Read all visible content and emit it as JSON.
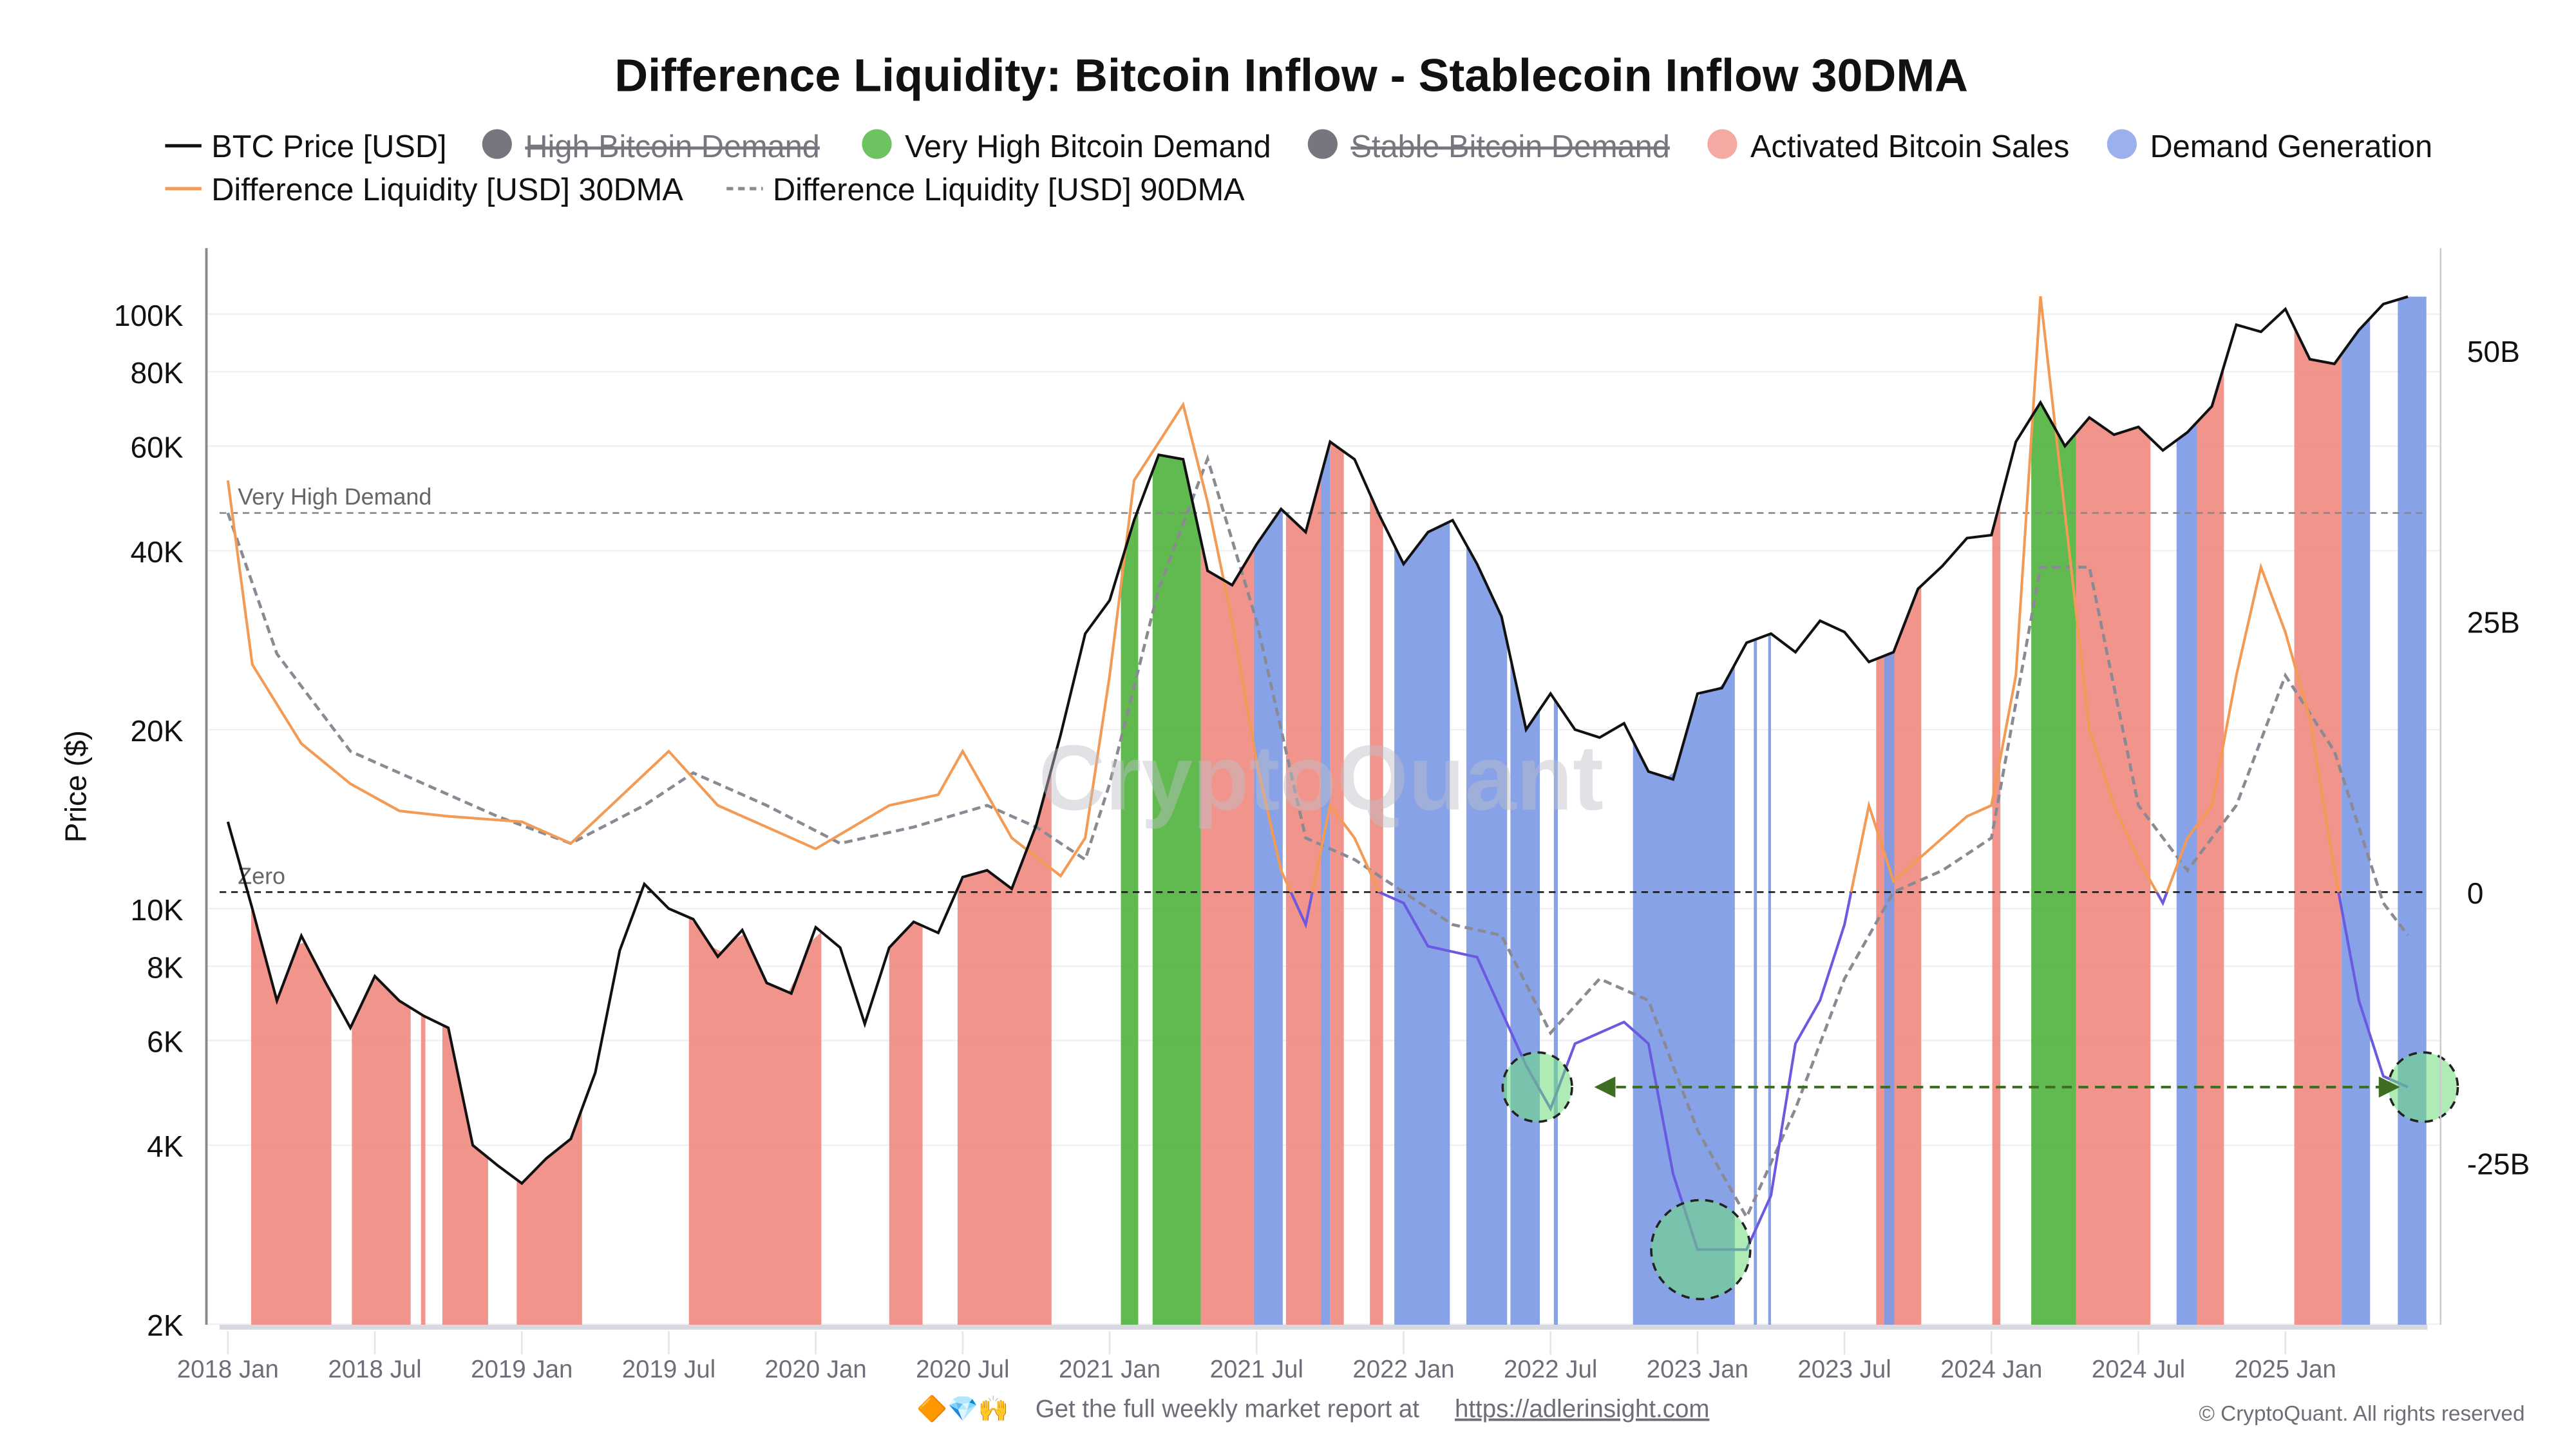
{
  "chart_data": {
    "type": "line",
    "title": "Difference Liquidity: Bitcoin Inflow - Stablecoin Inflow 30DMA",
    "ylabel_left": "Price ($)",
    "y_left_scale": "log",
    "y_left_range": [
      2000,
      140000
    ],
    "y_right_range": [
      -40,
      60
    ],
    "y_right_unit": "B USD",
    "x_range": [
      "2018-01-01",
      "2025-06-24"
    ],
    "grid": true,
    "legend_placement": "top-left",
    "x_ticks": [
      "2018 Jan",
      "2018 Jul",
      "2019 Jan",
      "2019 Jul",
      "2020 Jan",
      "2020 Jul",
      "2021 Jan",
      "2021 Jul",
      "2022 Jan",
      "2022 Jul",
      "2023 Jan",
      "2023 Jul",
      "2024 Jan",
      "2024 Jul",
      "2025 Jan"
    ],
    "x_tick_dates": [
      "2018-01-01",
      "2018-07-01",
      "2019-01-01",
      "2019-07-01",
      "2020-01-01",
      "2020-07-01",
      "2021-01-01",
      "2021-07-01",
      "2022-01-01",
      "2022-07-01",
      "2023-01-01",
      "2023-07-01",
      "2024-01-01",
      "2024-07-01",
      "2025-01-01"
    ],
    "y_left_ticks": [
      {
        "label": "100K",
        "value": 100000
      },
      {
        "label": "80K",
        "value": 80000
      },
      {
        "label": "60K",
        "value": 60000
      },
      {
        "label": "40K",
        "value": 40000
      },
      {
        "label": "20K",
        "value": 20000
      },
      {
        "label": "10K",
        "value": 10000
      },
      {
        "label": "8K",
        "value": 8000
      },
      {
        "label": "6K",
        "value": 6000
      },
      {
        "label": "4K",
        "value": 4000
      },
      {
        "label": "2K",
        "value": 2000
      }
    ],
    "y_right_ticks": [
      {
        "label": "50B",
        "value": 50
      },
      {
        "label": "25B",
        "value": 25
      },
      {
        "label": "0",
        "value": 0
      },
      {
        "label": "-25B",
        "value": -25
      }
    ],
    "reference_lines": [
      {
        "label": "Very High Demand",
        "value": 35
      },
      {
        "label": "Zero",
        "value": 0
      }
    ],
    "legend": [
      {
        "label": "BTC Price [USD]",
        "type": "line",
        "color": "#111111",
        "enabled": true
      },
      {
        "label": "High Bitcoin Demand",
        "type": "dot",
        "color": "#77767f",
        "enabled": false
      },
      {
        "label": "Very High Bitcoin Demand",
        "type": "dot",
        "color": "#6cc35f",
        "enabled": true
      },
      {
        "label": "Stable Bitcoin Demand",
        "type": "dot",
        "color": "#77767f",
        "enabled": false
      },
      {
        "label": "Activated Bitcoin Sales",
        "type": "dot",
        "color": "#f4aaa3",
        "enabled": true
      },
      {
        "label": "Demand Generation",
        "type": "dot",
        "color": "#9cb0ec",
        "enabled": true
      },
      {
        "label": "Difference Liquidity [USD] 30DMA",
        "type": "line",
        "color": "#f39a55",
        "enabled": true
      },
      {
        "label": "Difference Liquidity [USD] 90DMA",
        "type": "dashed",
        "color": "#8a8a94",
        "enabled": true
      }
    ],
    "colors": {
      "btc": "#111111",
      "liq30_pos": "#f39a55",
      "liq30_neg": "#6a5ae0",
      "liq90": "#8a8a94",
      "sales": "#f0897f",
      "very_high": "#4fb33c",
      "demand_gen": "#7b98e6",
      "annotation": "#3d6e22"
    },
    "btc_price": {
      "dates": [
        "2018-01",
        "2018-02",
        "2018-03",
        "2018-04",
        "2018-05",
        "2018-06",
        "2018-07",
        "2018-08",
        "2018-09",
        "2018-10",
        "2018-11",
        "2018-12",
        "2019-01",
        "2019-02",
        "2019-03",
        "2019-04",
        "2019-05",
        "2019-06",
        "2019-07",
        "2019-08",
        "2019-09",
        "2019-10",
        "2019-11",
        "2019-12",
        "2020-01",
        "2020-02",
        "2020-03",
        "2020-04",
        "2020-05",
        "2020-06",
        "2020-07",
        "2020-08",
        "2020-09",
        "2020-10",
        "2020-11",
        "2020-12",
        "2021-01",
        "2021-02",
        "2021-03",
        "2021-04",
        "2021-05",
        "2021-06",
        "2021-07",
        "2021-08",
        "2021-09",
        "2021-10",
        "2021-11",
        "2021-12",
        "2022-01",
        "2022-02",
        "2022-03",
        "2022-04",
        "2022-05",
        "2022-06",
        "2022-07",
        "2022-08",
        "2022-09",
        "2022-10",
        "2022-11",
        "2022-12",
        "2023-01",
        "2023-02",
        "2023-03",
        "2023-04",
        "2023-05",
        "2023-06",
        "2023-07",
        "2023-08",
        "2023-09",
        "2023-10",
        "2023-11",
        "2023-12",
        "2024-01",
        "2024-02",
        "2024-03",
        "2024-04",
        "2024-05",
        "2024-06",
        "2024-07",
        "2024-08",
        "2024-09",
        "2024-10",
        "2024-11",
        "2024-12",
        "2025-01",
        "2025-02",
        "2025-03",
        "2025-04",
        "2025-05",
        "2025-06"
      ],
      "values": [
        14000,
        10000,
        7000,
        9000,
        7500,
        6300,
        7700,
        7000,
        6600,
        6300,
        4000,
        3700,
        3450,
        3800,
        4100,
        5300,
        8500,
        11000,
        10000,
        9600,
        8300,
        9200,
        7500,
        7200,
        9300,
        8600,
        6400,
        8600,
        9500,
        9100,
        11300,
        11600,
        10800,
        13800,
        19600,
        29000,
        33000,
        45000,
        58000,
        57000,
        37000,
        35000,
        41000,
        47000,
        43000,
        61000,
        57000,
        46000,
        38000,
        43000,
        45000,
        38000,
        31000,
        20000,
        23000,
        20000,
        19400,
        20500,
        17000,
        16500,
        23000,
        23500,
        28000,
        29000,
        27000,
        30500,
        29200,
        26000,
        27000,
        34500,
        37700,
        42000,
        42500,
        61000,
        71000,
        60000,
        67000,
        62700,
        64600,
        59000,
        63300,
        70000,
        96000,
        93400,
        102000,
        84000,
        82500,
        94000,
        104000,
        107000
      ]
    },
    "liquidity_30dma": {
      "dates": [
        "2018-01",
        "2018-02",
        "2018-04",
        "2018-06",
        "2018-08",
        "2018-10",
        "2019-01",
        "2019-03",
        "2019-07",
        "2019-09",
        "2019-11",
        "2020-01",
        "2020-04",
        "2020-06",
        "2020-07",
        "2020-09",
        "2020-11",
        "2020-12",
        "2021-01",
        "2021-02",
        "2021-04",
        "2021-05",
        "2021-06",
        "2021-07",
        "2021-08",
        "2021-09",
        "2021-10",
        "2021-11",
        "2021-12",
        "2022-01",
        "2022-02",
        "2022-04",
        "2022-06",
        "2022-07",
        "2022-08",
        "2022-10",
        "2022-11",
        "2022-12",
        "2023-01",
        "2023-03",
        "2023-04",
        "2023-05",
        "2023-06",
        "2023-07",
        "2023-08",
        "2023-09",
        "2023-10",
        "2023-12",
        "2024-01",
        "2024-02",
        "2024-03",
        "2024-04",
        "2024-05",
        "2024-06",
        "2024-07",
        "2024-08",
        "2024-09",
        "2024-10",
        "2024-11",
        "2024-12",
        "2025-01",
        "2025-02",
        "2025-03",
        "2025-04",
        "2025-05",
        "2025-06"
      ],
      "values": [
        38,
        21,
        13.7,
        10,
        7.5,
        7,
        6.5,
        4.5,
        13,
        8,
        6,
        4,
        8,
        9,
        13,
        5,
        1.5,
        5,
        20,
        38,
        45,
        36,
        25,
        12,
        2,
        -3,
        8,
        5,
        0,
        -1,
        -5,
        -6,
        -16,
        -20,
        -14,
        -12,
        -14,
        -26,
        -33,
        -33,
        -28,
        -14,
        -10,
        -3,
        8,
        1,
        3,
        7,
        8,
        20,
        55,
        35,
        15,
        8,
        3,
        -1,
        5,
        8,
        20,
        30,
        24,
        16,
        2,
        -10,
        -17,
        -18
      ]
    },
    "liquidity_90dma": {
      "dates": [
        "2018-01",
        "2018-03",
        "2018-06",
        "2018-09",
        "2018-12",
        "2019-03",
        "2019-06",
        "2019-08",
        "2019-11",
        "2020-02",
        "2020-05",
        "2020-08",
        "2020-10",
        "2020-12",
        "2021-01",
        "2021-03",
        "2021-05",
        "2021-07",
        "2021-09",
        "2021-11",
        "2022-01",
        "2022-03",
        "2022-05",
        "2022-07",
        "2022-09",
        "2022-11",
        "2023-01",
        "2023-03",
        "2023-05",
        "2023-07",
        "2023-09",
        "2023-11",
        "2024-01",
        "2024-03",
        "2024-05",
        "2024-07",
        "2024-09",
        "2024-11",
        "2025-01",
        "2025-03",
        "2025-05",
        "2025-06"
      ],
      "values": [
        35,
        22,
        13,
        10,
        7,
        4.5,
        8,
        11,
        8,
        4.5,
        6,
        8,
        6,
        3,
        10,
        28,
        40,
        25,
        5,
        3,
        0,
        -3,
        -4,
        -13,
        -8,
        -10,
        -22,
        -30,
        -20,
        -8,
        0,
        2,
        5,
        30,
        30,
        8,
        2,
        8,
        20,
        13,
        -1,
        -4
      ]
    },
    "regimes": [
      {
        "type": "sales",
        "start": "2018-01-30",
        "end": "2018-05-08"
      },
      {
        "type": "sales",
        "start": "2018-06-03",
        "end": "2018-08-15"
      },
      {
        "type": "sales",
        "start": "2018-08-28",
        "end": "2018-09-03"
      },
      {
        "type": "sales",
        "start": "2018-09-24",
        "end": "2018-11-20"
      },
      {
        "type": "sales",
        "start": "2018-12-25",
        "end": "2019-03-15"
      },
      {
        "type": "sales",
        "start": "2019-07-26",
        "end": "2020-01-08"
      },
      {
        "type": "sales",
        "start": "2020-04-01",
        "end": "2020-05-12"
      },
      {
        "type": "sales",
        "start": "2020-06-25",
        "end": "2020-10-20"
      },
      {
        "type": "very_high",
        "start": "2021-01-15",
        "end": "2021-02-06"
      },
      {
        "type": "very_high",
        "start": "2021-02-24",
        "end": "2021-04-23"
      },
      {
        "type": "sales",
        "start": "2021-04-23",
        "end": "2021-06-28"
      },
      {
        "type": "demand_gen",
        "start": "2021-06-28",
        "end": "2021-08-03"
      },
      {
        "type": "sales",
        "start": "2021-08-07",
        "end": "2021-09-20"
      },
      {
        "type": "demand_gen",
        "start": "2021-09-20",
        "end": "2021-10-01"
      },
      {
        "type": "sales",
        "start": "2021-10-01",
        "end": "2021-10-18"
      },
      {
        "type": "sales",
        "start": "2021-11-20",
        "end": "2021-12-06"
      },
      {
        "type": "demand_gen",
        "start": "2021-12-20",
        "end": "2022-02-28"
      },
      {
        "type": "demand_gen",
        "start": "2022-03-18",
        "end": "2022-05-08"
      },
      {
        "type": "demand_gen",
        "start": "2022-05-12",
        "end": "2022-06-18"
      },
      {
        "type": "demand_gen",
        "start": "2022-07-05",
        "end": "2022-07-10"
      },
      {
        "type": "demand_gen",
        "start": "2022-10-12",
        "end": "2023-02-17"
      },
      {
        "type": "demand_gen",
        "start": "2023-03-10",
        "end": "2023-03-14"
      },
      {
        "type": "demand_gen",
        "start": "2023-03-28",
        "end": "2023-04-01"
      },
      {
        "type": "sales",
        "start": "2023-08-10",
        "end": "2023-10-05"
      },
      {
        "type": "demand_gen",
        "start": "2023-08-20",
        "end": "2023-09-02"
      },
      {
        "type": "sales",
        "start": "2024-01-02",
        "end": "2024-01-12"
      },
      {
        "type": "very_high",
        "start": "2024-02-20",
        "end": "2024-04-15"
      },
      {
        "type": "sales",
        "start": "2024-04-15",
        "end": "2024-07-16"
      },
      {
        "type": "demand_gen",
        "start": "2024-08-18",
        "end": "2024-09-13"
      },
      {
        "type": "sales",
        "start": "2024-09-13",
        "end": "2024-10-16"
      },
      {
        "type": "sales",
        "start": "2025-01-12",
        "end": "2025-03-10"
      },
      {
        "type": "demand_gen",
        "start": "2025-03-10",
        "end": "2025-04-15"
      },
      {
        "type": "demand_gen",
        "start": "2025-05-19",
        "end": "2025-06-24"
      }
    ],
    "annotations": [
      {
        "type": "circle",
        "date": "2022-06-15",
        "value": -18,
        "size": "small"
      },
      {
        "type": "circle",
        "date": "2023-01-05",
        "value": -33,
        "size": "large"
      },
      {
        "type": "circle",
        "date": "2025-06-20",
        "value": -18,
        "size": "small"
      },
      {
        "type": "arrow",
        "start": "2022-09-01",
        "end": "2025-05-15",
        "value": -18,
        "direction": "both"
      }
    ]
  },
  "watermark": "CryptoQuant",
  "footer": {
    "emojis": "🔶💎🙌",
    "text": "Get the full weekly market report at",
    "link": "https://adlerinsight.com",
    "copyright": "© CryptoQuant. All rights reserved"
  }
}
